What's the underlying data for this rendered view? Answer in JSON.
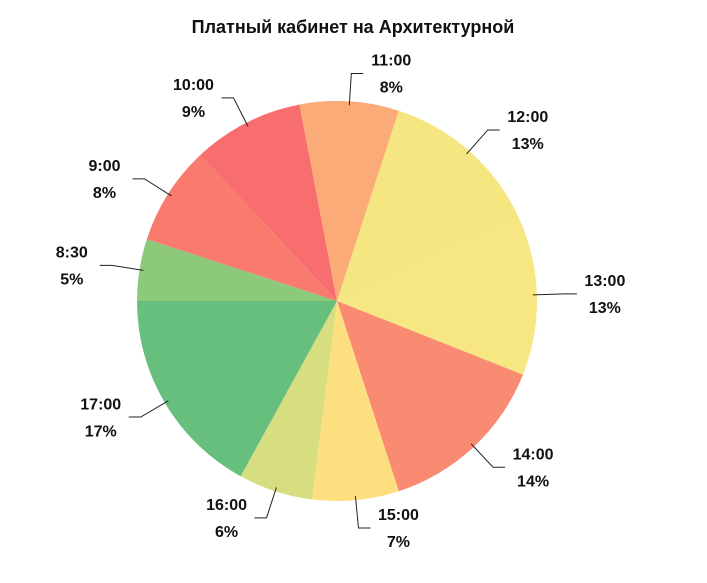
{
  "chart_data": {
    "type": "pie",
    "title": "Платный кабинет на Архитектурной",
    "categories": [
      "8:30",
      "9:00",
      "10:00",
      "11:00",
      "12:00",
      "13:00",
      "14:00",
      "15:00",
      "16:00",
      "17:00"
    ],
    "values": [
      5,
      8,
      9,
      8,
      13,
      13,
      14,
      7,
      6,
      17
    ],
    "value_labels": [
      "5%",
      "8%",
      "9%",
      "8%",
      "13%",
      "13%",
      "14%",
      "7%",
      "6%",
      "17%"
    ],
    "colors": [
      "#8cc97a",
      "#f87b6e",
      "#f86d6e",
      "#fbab78",
      "#f5e682",
      "#f6e783",
      "#f88b71",
      "#fddf7f",
      "#d6de80",
      "#66bf7c"
    ]
  }
}
